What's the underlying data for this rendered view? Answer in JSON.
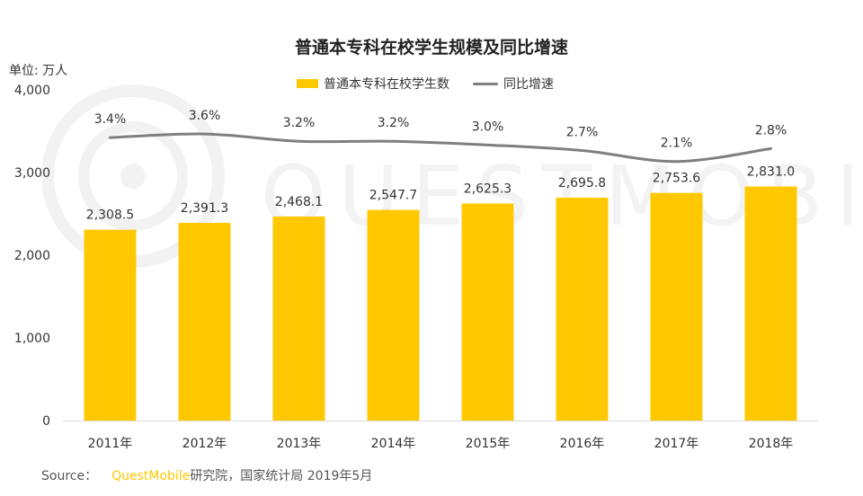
{
  "colors": {
    "bar": "#FFC800",
    "line": "#7F7F7F",
    "axis": "#D9D9D9",
    "brand": "#FFC800",
    "watermark": "#F2F2F2"
  },
  "unit_label": "单位: 万人",
  "watermark_text": "QUESTMOBILE",
  "source": {
    "prefix": "Source：",
    "brand": "QuestMobile",
    "rest": "研究院，国家统计局 2019年5月"
  },
  "chart_data": {
    "type": "bar",
    "title": "普通本专科在校学生规模及同比增速",
    "categories": [
      "2011年",
      "2012年",
      "2013年",
      "2014年",
      "2015年",
      "2016年",
      "2017年",
      "2018年"
    ],
    "series": [
      {
        "name": "普通本专科在校学生数",
        "type": "bar",
        "values": [
          2308.5,
          2391.3,
          2468.1,
          2547.7,
          2625.3,
          2695.8,
          2753.6,
          2831.0
        ],
        "labels": [
          "2,308.5",
          "2,391.3",
          "2,468.1",
          "2,547.7",
          "2,625.3",
          "2,695.8",
          "2,753.6",
          "2,831.0"
        ]
      },
      {
        "name": "同比增速",
        "type": "line",
        "values": [
          3.4,
          3.6,
          3.2,
          3.2,
          3.0,
          2.7,
          2.1,
          2.8
        ],
        "labels": [
          "3.4%",
          "3.6%",
          "3.2%",
          "3.2%",
          "3.0%",
          "2.7%",
          "2.1%",
          "2.8%"
        ]
      }
    ],
    "ylim": [
      0,
      4000
    ],
    "yticks": [
      0,
      1000,
      2000,
      3000,
      4000
    ],
    "ytick_labels": [
      "0",
      "1,000",
      "2,000",
      "3,000",
      "4,000"
    ],
    "y2lim": [
      -12,
      6
    ],
    "xlabel": "",
    "ylabel": "",
    "legend_position": "top-center",
    "grid": false
  }
}
